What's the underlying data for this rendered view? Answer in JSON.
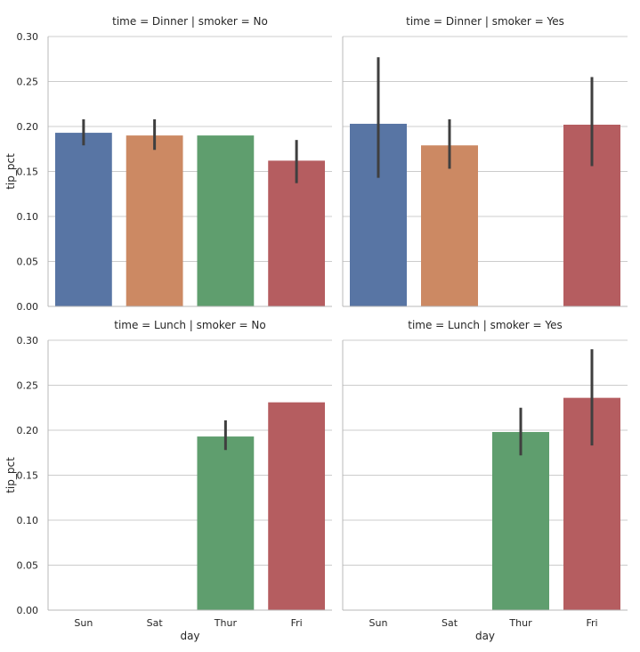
{
  "chart_data": {
    "type": "bar",
    "categories": [
      "Sun",
      "Sat",
      "Thur",
      "Fri"
    ],
    "xlabel": "day",
    "ylabel": "tip_pct",
    "ylim": [
      0,
      0.3
    ],
    "yticks": [
      "0.00",
      "0.05",
      "0.10",
      "0.15",
      "0.20",
      "0.25",
      "0.30"
    ],
    "grid": "horizontal",
    "colors": [
      "#5875a4",
      "#cc8963",
      "#5f9e6e",
      "#b55d60"
    ],
    "errorbar_color": "#3f3f3f",
    "panels": [
      {
        "title": "time = Dinner | smoker = No",
        "values": [
          0.193,
          0.19,
          0.19,
          0.162
        ],
        "ci": [
          [
            0.179,
            0.208
          ],
          [
            0.174,
            0.208
          ],
          null,
          [
            0.137,
            0.185
          ]
        ]
      },
      {
        "title": "time = Dinner | smoker = Yes",
        "values": [
          0.203,
          0.179,
          null,
          0.202
        ],
        "ci": [
          [
            0.143,
            0.277
          ],
          [
            0.153,
            0.208
          ],
          null,
          [
            0.156,
            0.255
          ]
        ]
      },
      {
        "title": "time = Lunch | smoker = No",
        "values": [
          null,
          null,
          0.193,
          0.231
        ],
        "ci": [
          null,
          null,
          [
            0.178,
            0.211
          ],
          null
        ]
      },
      {
        "title": "time = Lunch | smoker = Yes",
        "values": [
          null,
          null,
          0.198,
          0.236
        ],
        "ci": [
          null,
          null,
          [
            0.172,
            0.225
          ],
          [
            0.183,
            0.29
          ]
        ]
      }
    ]
  }
}
